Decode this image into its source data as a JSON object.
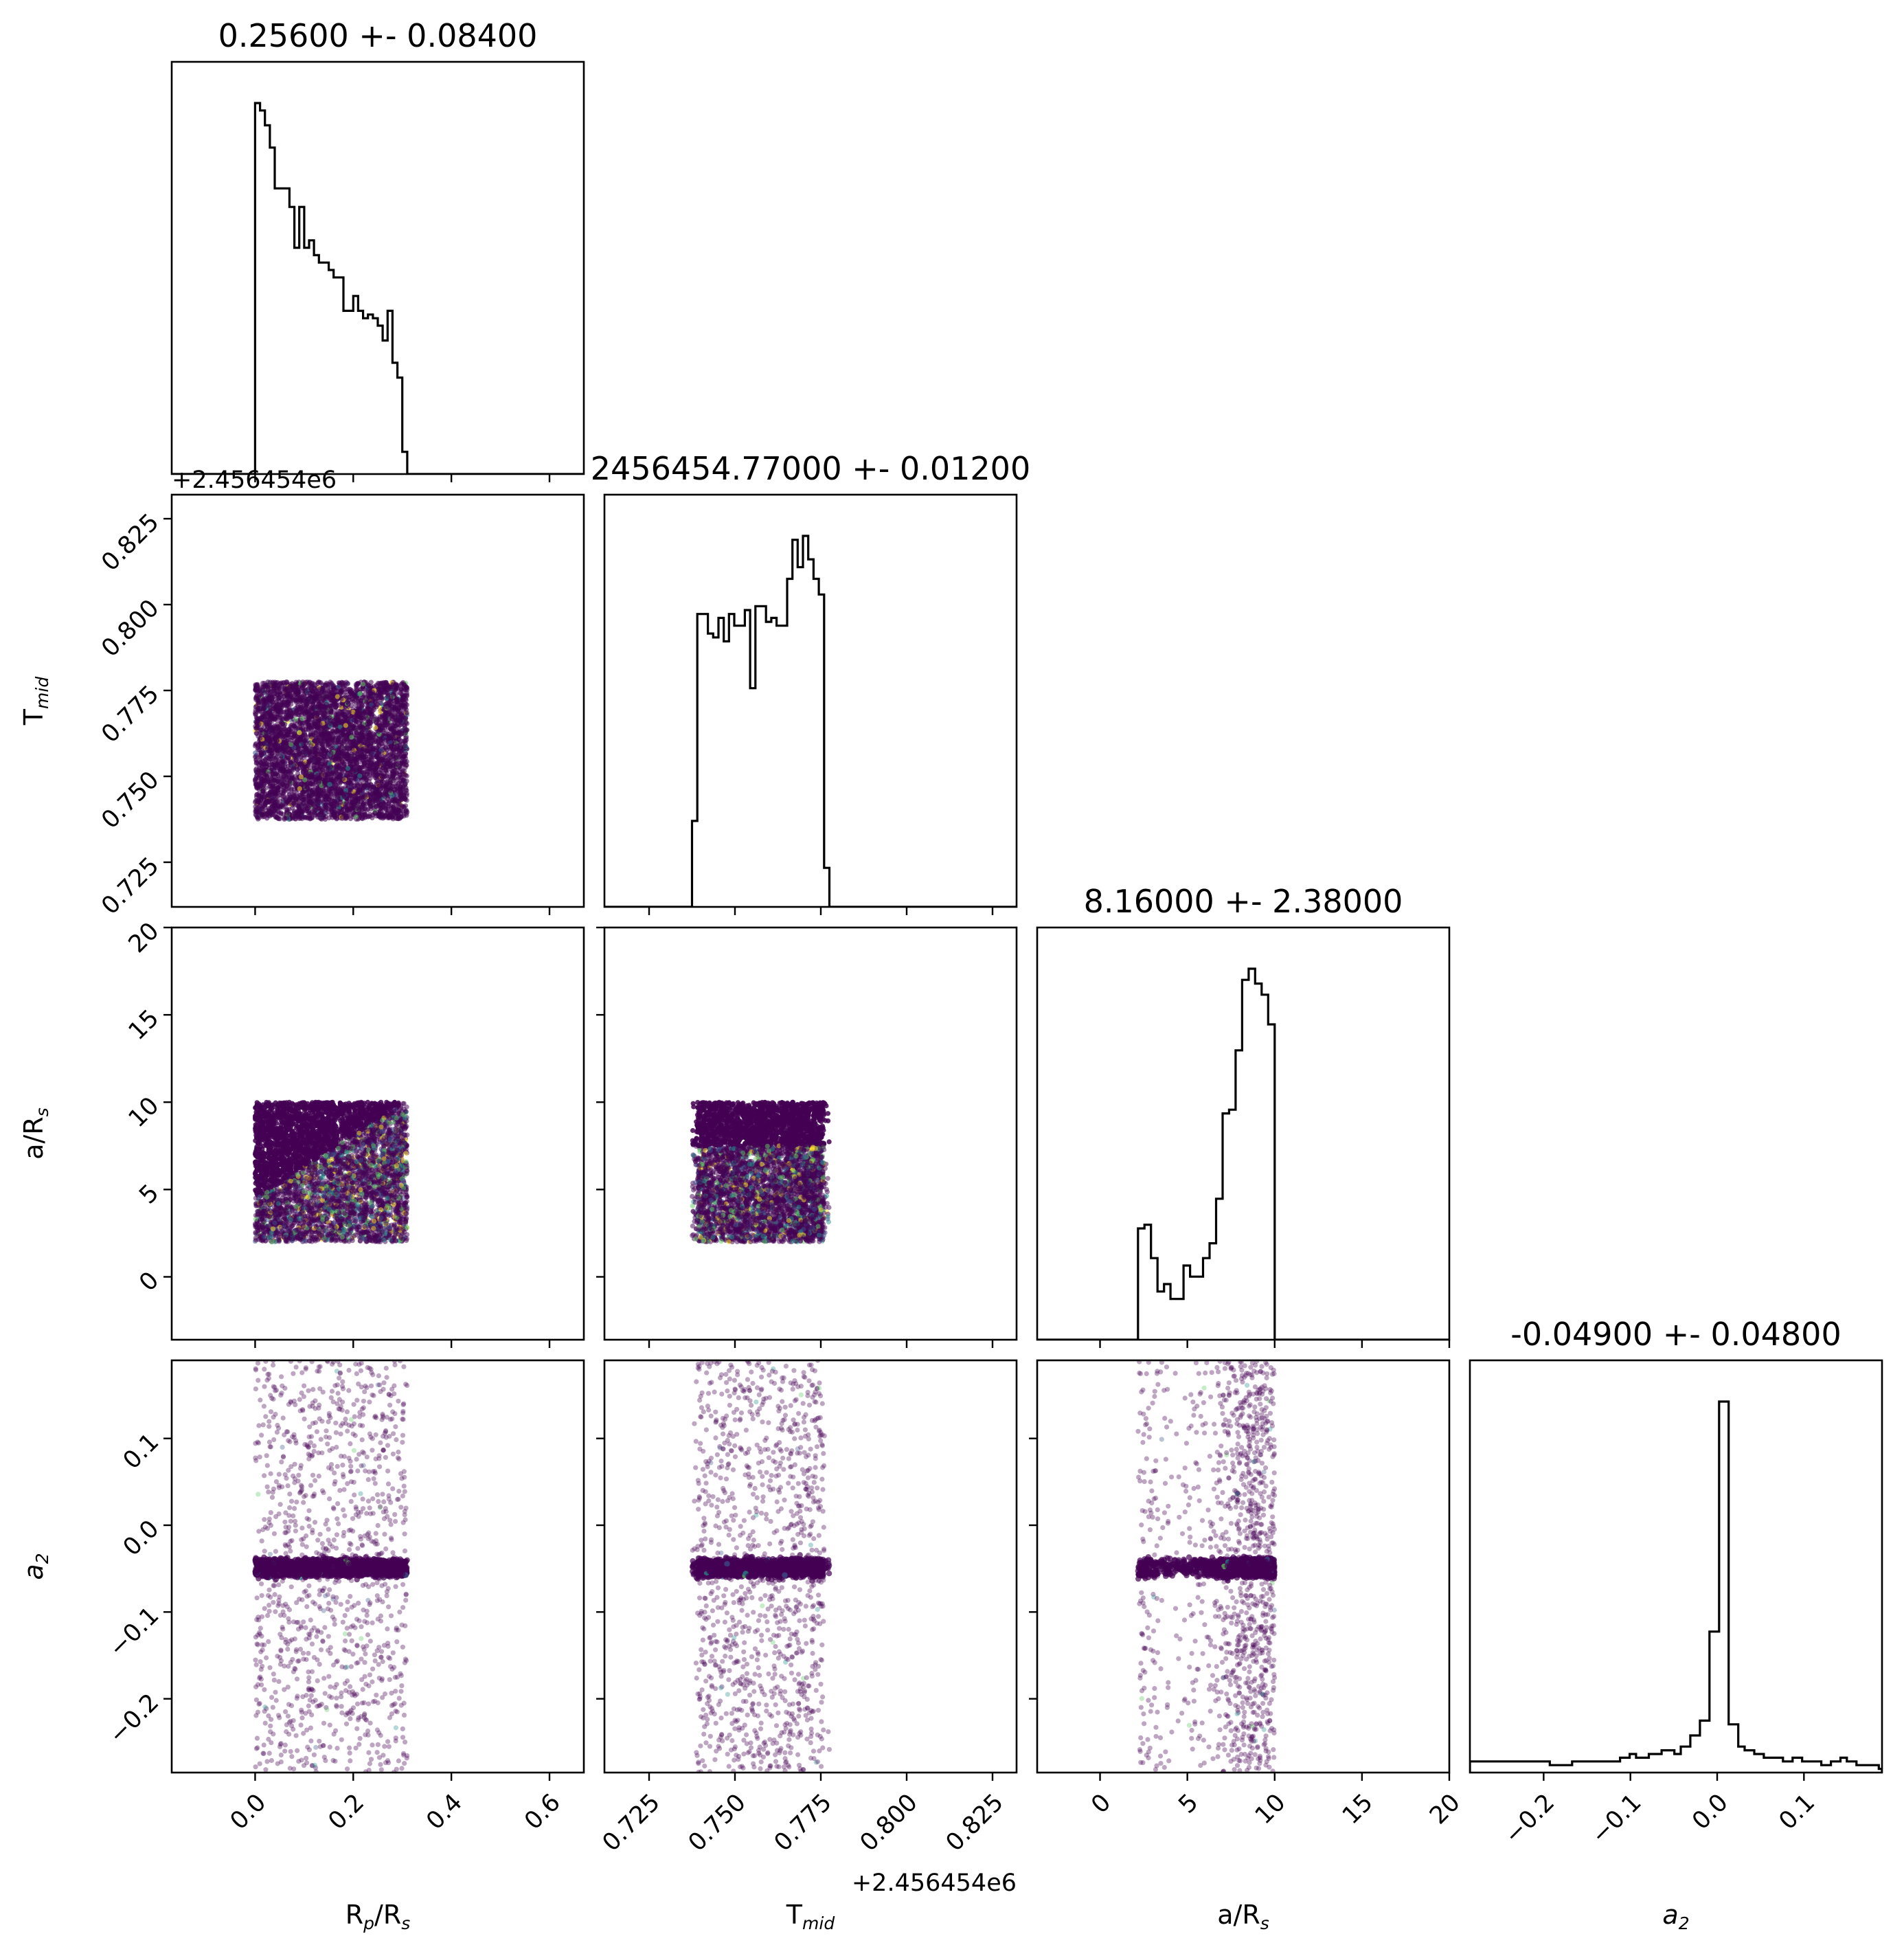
{
  "chart_data": {
    "type": "scatter",
    "plot_kind": "corner plot (posterior samples, lower-triangle scatter + diagonal step histograms)",
    "colormap": "viridis",
    "axes_color": "#000000",
    "parameters": [
      {
        "key": "rp",
        "label_main": "R",
        "label_sub": "p",
        "label_tail": "/R",
        "label_tail_sub": "s",
        "range": [
          -0.17,
          0.67
        ],
        "ticks": [
          0.0,
          0.2,
          0.4,
          0.6
        ],
        "tick_labels": [
          "0.0",
          "0.2",
          "0.4",
          "0.6"
        ],
        "title": "0.25600 +- 0.08400"
      },
      {
        "key": "tmid",
        "label_main": "T",
        "label_sub": "mid",
        "label_tail": "",
        "label_tail_sub": "",
        "range": [
          2456454.712,
          2456454.832
        ],
        "offset_text": "+2.456454e6",
        "ticks": [
          2456454.725,
          2456454.75,
          2456454.775,
          2456454.8,
          2456454.825
        ],
        "tick_labels": [
          "0.725",
          "0.750",
          "0.775",
          "0.800",
          "0.825"
        ],
        "title": "2456454.77000 +- 0.01200"
      },
      {
        "key": "ars",
        "label_main": "a/R",
        "label_sub": "s",
        "label_tail": "",
        "label_tail_sub": "",
        "range": [
          -3.6,
          20.0
        ],
        "ticks": [
          0,
          5,
          10,
          15,
          20
        ],
        "tick_labels": [
          "0",
          "5",
          "10",
          "15",
          "20"
        ],
        "title": "8.16000 +- 2.38000"
      },
      {
        "key": "a2",
        "label_main": "a",
        "label_sub": "2",
        "label_tail": "",
        "label_tail_sub": "",
        "label_italic": true,
        "range": [
          -0.285,
          0.19
        ],
        "ticks": [
          -0.2,
          -0.1,
          0.0,
          0.1
        ],
        "tick_labels": [
          "−0.2",
          "−0.1",
          "0.0",
          "0.1"
        ],
        "title": "-0.04900 +- 0.04800"
      }
    ],
    "histograms": {
      "rp": {
        "edges": [
          0.0,
          0.31
        ],
        "heights": [
          1.0,
          0.98,
          0.94,
          0.88,
          0.77,
          0.77,
          0.77,
          0.72,
          0.61,
          0.72,
          0.61,
          0.63,
          0.59,
          0.57,
          0.57,
          0.55,
          0.53,
          0.53,
          0.44,
          0.44,
          0.48,
          0.44,
          0.42,
          0.43,
          0.42,
          0.4,
          0.36,
          0.44,
          0.3,
          0.26,
          0.06
        ]
      },
      "tmid": {
        "edges": [
          2456454.7375,
          2456454.7775
        ],
        "heights": [
          0.22,
          0.75,
          0.75,
          0.7,
          0.69,
          0.74,
          0.68,
          0.75,
          0.72,
          0.72,
          0.76,
          0.56,
          0.77,
          0.77,
          0.73,
          0.74,
          0.72,
          0.72,
          0.84,
          0.94,
          0.87,
          0.95,
          0.89,
          0.84,
          0.8,
          0.1
        ]
      },
      "ars": {
        "edges": [
          1.8,
          10.0
        ],
        "heights": [
          0.0,
          0.3,
          0.31,
          0.22,
          0.13,
          0.15,
          0.11,
          0.11,
          0.2,
          0.17,
          0.17,
          0.22,
          0.26,
          0.38,
          0.61,
          0.62,
          0.78,
          0.97,
          1.0,
          0.96,
          0.93,
          0.85
        ]
      },
      "a2": {
        "edges": [
          -0.285,
          0.19
        ],
        "heights": [
          0.03,
          0.03,
          0.03,
          0.03,
          0.03,
          0.03,
          0.03,
          0.03,
          0.03,
          0.03,
          0.03,
          0.03,
          0.03,
          0.03,
          0.03,
          0.03,
          0.03,
          0.03,
          0.03,
          0.03,
          0.03,
          0.03,
          0.03,
          0.03,
          0.03,
          0.02,
          0.02,
          0.02,
          0.02,
          0.02,
          0.02,
          0.02,
          0.03,
          0.03,
          0.03,
          0.03,
          0.03,
          0.03,
          0.03,
          0.03,
          0.03,
          0.03,
          0.03,
          0.03,
          0.03,
          0.03,
          0.03,
          0.04,
          0.04,
          0.04,
          0.05,
          0.05,
          0.04,
          0.04,
          0.04,
          0.04,
          0.05,
          0.05,
          0.05,
          0.05,
          0.06,
          0.06,
          0.06,
          0.06,
          0.05,
          0.05,
          0.07,
          0.07,
          0.07,
          0.1,
          0.1,
          0.1,
          0.14,
          0.14,
          0.14,
          0.38,
          0.38,
          0.38,
          1.0,
          1.0,
          1.0,
          0.13,
          0.13,
          0.13,
          0.07,
          0.07,
          0.06,
          0.06,
          0.06,
          0.05,
          0.05,
          0.05,
          0.04,
          0.04,
          0.04,
          0.04,
          0.04,
          0.04,
          0.03,
          0.03,
          0.03,
          0.04,
          0.04,
          0.04,
          0.03,
          0.03,
          0.03,
          0.03,
          0.03,
          0.03,
          0.02,
          0.02,
          0.02,
          0.03,
          0.03,
          0.03,
          0.04,
          0.04,
          0.03,
          0.03,
          0.03,
          0.02,
          0.02,
          0.02,
          0.02,
          0.02,
          0.02,
          0.02,
          0.01
        ]
      }
    },
    "sample_support": {
      "rp": [
        0.0,
        0.31
      ],
      "tmid": [
        2456454.7375,
        2456454.7775
      ],
      "ars": [
        2.0,
        10.0
      ],
      "a2_core": [
        -0.058,
        -0.04
      ],
      "a2_tails": [
        -0.285,
        0.19
      ]
    },
    "grid": false,
    "legend": "none"
  }
}
